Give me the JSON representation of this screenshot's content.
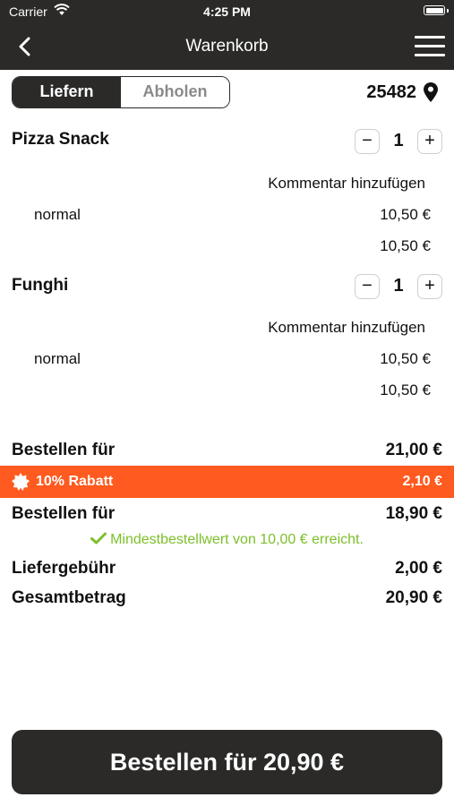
{
  "status": {
    "carrier": "Carrier",
    "time": "4:25 PM"
  },
  "nav": {
    "title": "Warenkorb"
  },
  "mode": {
    "options": [
      "Liefern",
      "Abholen"
    ],
    "selected": "Liefern"
  },
  "location": {
    "zip": "25482"
  },
  "items": [
    {
      "name": "Pizza Snack",
      "qty": "1",
      "comment_label": "Kommentar hinzufügen",
      "variant": "normal",
      "variant_price": "10,50 €",
      "item_total": "10,50 €"
    },
    {
      "name": "Funghi",
      "qty": "1",
      "comment_label": "Kommentar hinzufügen",
      "variant": "normal",
      "variant_price": "10,50 €",
      "item_total": "10,50 €"
    }
  ],
  "summary": {
    "subtotal_label": "Bestellen für",
    "subtotal_value": "21,00 €",
    "discount_label": "10% Rabatt",
    "discount_value": "2,10 €",
    "after_discount_label": "Bestellen für",
    "after_discount_value": "18,90 €",
    "minimum_note": "Mindestbestellwert von 10,00 € erreicht.",
    "delivery_label": "Liefergebühr",
    "delivery_value": "2,00 €",
    "total_label": "Gesamtbetrag",
    "total_value": "20,90 €"
  },
  "order_button": {
    "label": "Bestellen für 20,90 €"
  },
  "colors": {
    "dark": "#2b2a29",
    "accent": "#ff5a1f",
    "success": "#7cbf2a"
  }
}
